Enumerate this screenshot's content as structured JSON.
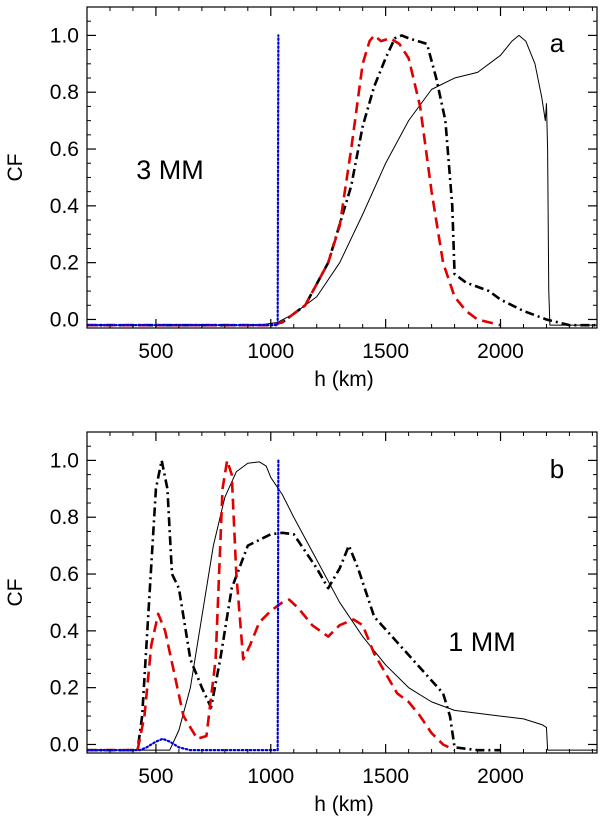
{
  "chart_data": [
    {
      "type": "line",
      "panel_letter": "a",
      "annotation": "3 MM",
      "xlabel": "h (km)",
      "ylabel": "CF",
      "xlim": [
        200,
        2420
      ],
      "ylim": [
        -0.03,
        1.1
      ],
      "xticks": [
        500,
        1000,
        1500,
        2000
      ],
      "xtick_labels": [
        "500",
        "1000",
        "1500",
        "2000"
      ],
      "yticks": [
        0.0,
        0.2,
        0.4,
        0.6,
        0.8,
        1.0
      ],
      "ytick_labels": [
        "0.0",
        "0.2",
        "0.4",
        "0.6",
        "0.8",
        "1.0"
      ],
      "grid": false,
      "series": [
        {
          "style": "solid-thin",
          "color": "#000000",
          "points": [
            [
              200,
              -0.02
            ],
            [
              950,
              -0.02
            ],
            [
              1030,
              -0.01
            ],
            [
              1100,
              0.02
            ],
            [
              1200,
              0.08
            ],
            [
              1300,
              0.2
            ],
            [
              1400,
              0.37
            ],
            [
              1500,
              0.55
            ],
            [
              1600,
              0.7
            ],
            [
              1700,
              0.81
            ],
            [
              1800,
              0.85
            ],
            [
              1900,
              0.87
            ],
            [
              2000,
              0.93
            ],
            [
              2050,
              0.98
            ],
            [
              2080,
              1.0
            ],
            [
              2110,
              0.98
            ],
            [
              2150,
              0.9
            ],
            [
              2180,
              0.78
            ],
            [
              2195,
              0.7
            ],
            [
              2200,
              0.76
            ],
            [
              2205,
              0.6
            ],
            [
              2210,
              0.1
            ],
            [
              2215,
              -0.02
            ],
            [
              2420,
              -0.02
            ]
          ]
        },
        {
          "style": "dash-dot-thick",
          "color": "#000000",
          "points": [
            [
              200,
              -0.02
            ],
            [
              1000,
              -0.02
            ],
            [
              1050,
              -0.01
            ],
            [
              1150,
              0.05
            ],
            [
              1250,
              0.2
            ],
            [
              1350,
              0.47
            ],
            [
              1400,
              0.68
            ],
            [
              1450,
              0.82
            ],
            [
              1500,
              0.92
            ],
            [
              1540,
              0.99
            ],
            [
              1570,
              1.0
            ],
            [
              1600,
              0.99
            ],
            [
              1640,
              0.98
            ],
            [
              1680,
              0.97
            ],
            [
              1720,
              0.85
            ],
            [
              1760,
              0.7
            ],
            [
              1790,
              0.4
            ],
            [
              1800,
              0.16
            ],
            [
              1850,
              0.13
            ],
            [
              1950,
              0.1
            ],
            [
              2000,
              0.07
            ],
            [
              2100,
              0.03
            ],
            [
              2200,
              0.0
            ],
            [
              2300,
              -0.02
            ],
            [
              2420,
              -0.02
            ]
          ]
        },
        {
          "style": "dashed-thick",
          "color": "#e00000",
          "points": [
            [
              200,
              -0.02
            ],
            [
              1000,
              -0.02
            ],
            [
              1050,
              -0.01
            ],
            [
              1150,
              0.05
            ],
            [
              1250,
              0.2
            ],
            [
              1300,
              0.33
            ],
            [
              1350,
              0.6
            ],
            [
              1400,
              0.9
            ],
            [
              1430,
              0.98
            ],
            [
              1450,
              1.0
            ],
            [
              1480,
              0.98
            ],
            [
              1520,
              0.99
            ],
            [
              1560,
              0.97
            ],
            [
              1600,
              0.92
            ],
            [
              1650,
              0.75
            ],
            [
              1700,
              0.45
            ],
            [
              1750,
              0.2
            ],
            [
              1800,
              0.08
            ],
            [
              1850,
              0.03
            ],
            [
              1900,
              0.0
            ],
            [
              2000,
              -0.02
            ]
          ]
        },
        {
          "style": "dotted",
          "color": "#0000dd",
          "points": [
            [
              200,
              -0.02
            ],
            [
              1030,
              -0.02
            ],
            [
              1033,
              1.0
            ]
          ]
        }
      ]
    },
    {
      "type": "line",
      "panel_letter": "b",
      "annotation": "1 MM",
      "xlabel": "h (km)",
      "ylabel": "CF",
      "xlim": [
        200,
        2420
      ],
      "ylim": [
        -0.03,
        1.1
      ],
      "xticks": [
        500,
        1000,
        1500,
        2000
      ],
      "xtick_labels": [
        "500",
        "1000",
        "1500",
        "2000"
      ],
      "yticks": [
        0.0,
        0.2,
        0.4,
        0.6,
        0.8,
        1.0
      ],
      "ytick_labels": [
        "0.0",
        "0.2",
        "0.4",
        "0.6",
        "0.8",
        "1.0"
      ],
      "grid": false,
      "series": [
        {
          "style": "solid-thin",
          "color": "#000000",
          "points": [
            [
              200,
              -0.02
            ],
            [
              560,
              -0.02
            ],
            [
              600,
              0.05
            ],
            [
              650,
              0.2
            ],
            [
              700,
              0.45
            ],
            [
              750,
              0.7
            ],
            [
              800,
              0.87
            ],
            [
              850,
              0.96
            ],
            [
              900,
              0.99
            ],
            [
              950,
              0.995
            ],
            [
              980,
              0.98
            ],
            [
              1000,
              0.94
            ],
            [
              1050,
              0.88
            ],
            [
              1100,
              0.8
            ],
            [
              1200,
              0.65
            ],
            [
              1300,
              0.5
            ],
            [
              1400,
              0.38
            ],
            [
              1500,
              0.28
            ],
            [
              1600,
              0.2
            ],
            [
              1700,
              0.15
            ],
            [
              1800,
              0.12
            ],
            [
              1900,
              0.11
            ],
            [
              2000,
              0.1
            ],
            [
              2100,
              0.09
            ],
            [
              2180,
              0.07
            ],
            [
              2200,
              0.06
            ],
            [
              2205,
              -0.02
            ],
            [
              2420,
              -0.02
            ]
          ]
        },
        {
          "style": "dash-dot-thick",
          "color": "#000000",
          "points": [
            [
              200,
              -0.02
            ],
            [
              420,
              -0.02
            ],
            [
              440,
              0.1
            ],
            [
              470,
              0.5
            ],
            [
              500,
              0.9
            ],
            [
              525,
              1.0
            ],
            [
              550,
              0.9
            ],
            [
              570,
              0.6
            ],
            [
              600,
              0.55
            ],
            [
              650,
              0.3
            ],
            [
              700,
              0.2
            ],
            [
              740,
              0.13
            ],
            [
              780,
              0.3
            ],
            [
              830,
              0.55
            ],
            [
              900,
              0.7
            ],
            [
              1000,
              0.74
            ],
            [
              1050,
              0.745
            ],
            [
              1100,
              0.74
            ],
            [
              1200,
              0.62
            ],
            [
              1250,
              0.55
            ],
            [
              1300,
              0.62
            ],
            [
              1340,
              0.7
            ],
            [
              1380,
              0.62
            ],
            [
              1450,
              0.45
            ],
            [
              1550,
              0.36
            ],
            [
              1650,
              0.27
            ],
            [
              1750,
              0.18
            ],
            [
              1780,
              0.1
            ],
            [
              1800,
              -0.01
            ],
            [
              1900,
              -0.02
            ],
            [
              2000,
              -0.02
            ]
          ]
        },
        {
          "style": "dashed-thick",
          "color": "#e00000",
          "points": [
            [
              200,
              -0.02
            ],
            [
              420,
              -0.02
            ],
            [
              450,
              0.1
            ],
            [
              480,
              0.35
            ],
            [
              510,
              0.46
            ],
            [
              540,
              0.4
            ],
            [
              580,
              0.25
            ],
            [
              620,
              0.1
            ],
            [
              680,
              0.02
            ],
            [
              720,
              0.03
            ],
            [
              760,
              0.3
            ],
            [
              790,
              0.9
            ],
            [
              810,
              1.0
            ],
            [
              830,
              0.95
            ],
            [
              850,
              0.6
            ],
            [
              880,
              0.3
            ],
            [
              910,
              0.35
            ],
            [
              950,
              0.43
            ],
            [
              1000,
              0.47
            ],
            [
              1050,
              0.5
            ],
            [
              1080,
              0.51
            ],
            [
              1120,
              0.48
            ],
            [
              1180,
              0.42
            ],
            [
              1250,
              0.38
            ],
            [
              1300,
              0.42
            ],
            [
              1360,
              0.44
            ],
            [
              1400,
              0.42
            ],
            [
              1450,
              0.32
            ],
            [
              1500,
              0.25
            ],
            [
              1550,
              0.18
            ],
            [
              1600,
              0.15
            ],
            [
              1650,
              0.1
            ],
            [
              1700,
              0.04
            ],
            [
              1750,
              0.0
            ],
            [
              1800,
              -0.02
            ]
          ]
        },
        {
          "style": "dotted",
          "color": "#0000dd",
          "points": [
            [
              200,
              -0.02
            ],
            [
              430,
              -0.02
            ],
            [
              460,
              -0.01
            ],
            [
              500,
              0.01
            ],
            [
              530,
              0.02
            ],
            [
              560,
              0.01
            ],
            [
              600,
              -0.01
            ],
            [
              650,
              -0.02
            ],
            [
              1030,
              -0.02
            ],
            [
              1033,
              1.0
            ]
          ]
        }
      ]
    }
  ]
}
